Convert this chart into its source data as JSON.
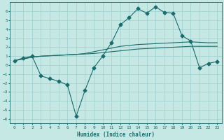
{
  "xlabel": "Humidex (Indice chaleur)",
  "xlim": [
    -0.5,
    23.5
  ],
  "ylim": [
    -6.5,
    7.0
  ],
  "yticks": [
    -6,
    -5,
    -4,
    -3,
    -2,
    -1,
    0,
    1,
    2,
    3,
    4,
    5,
    6
  ],
  "xticks": [
    0,
    1,
    2,
    3,
    4,
    5,
    6,
    7,
    8,
    9,
    10,
    11,
    12,
    13,
    14,
    15,
    16,
    17,
    18,
    19,
    20,
    21,
    22,
    23
  ],
  "bg_color": "#c5e8e5",
  "line_color": "#1a6b6b",
  "grid_color": "#9ecece",
  "line1_x": [
    0,
    1,
    2,
    3,
    4,
    5,
    6,
    7,
    8,
    9,
    10,
    11,
    12,
    13,
    14,
    15,
    16,
    17,
    18,
    19,
    20,
    21,
    22,
    23
  ],
  "line1_y": [
    0.5,
    0.7,
    0.9,
    1.0,
    1.05,
    1.1,
    1.15,
    1.2,
    1.25,
    1.3,
    1.4,
    1.5,
    1.6,
    1.7,
    1.8,
    1.85,
    1.9,
    1.95,
    2.0,
    2.05,
    2.1,
    2.1,
    2.1,
    2.1
  ],
  "line2_x": [
    0,
    1,
    2,
    3,
    4,
    5,
    6,
    7,
    8,
    9,
    10,
    11,
    12,
    13,
    14,
    15,
    16,
    17,
    18,
    19,
    20,
    21,
    22,
    23
  ],
  "line2_y": [
    0.5,
    0.7,
    0.9,
    1.0,
    1.05,
    1.1,
    1.15,
    1.2,
    1.3,
    1.5,
    1.7,
    1.9,
    2.1,
    2.2,
    2.3,
    2.35,
    2.4,
    2.45,
    2.5,
    2.55,
    2.6,
    2.55,
    2.5,
    2.5
  ],
  "line3_x": [
    0,
    1,
    2,
    3,
    4,
    5,
    6,
    7,
    8,
    9,
    10,
    11,
    12,
    13,
    14,
    15,
    16,
    17,
    18,
    19,
    20,
    21,
    22,
    23
  ],
  "line3_y": [
    0.5,
    0.8,
    1.0,
    -1.2,
    -1.5,
    -1.8,
    -2.2,
    -5.7,
    -2.8,
    -0.3,
    1.0,
    2.5,
    4.5,
    5.3,
    6.3,
    5.8,
    6.5,
    5.9,
    5.8,
    3.3,
    2.7,
    -0.3,
    0.2,
    0.4
  ]
}
